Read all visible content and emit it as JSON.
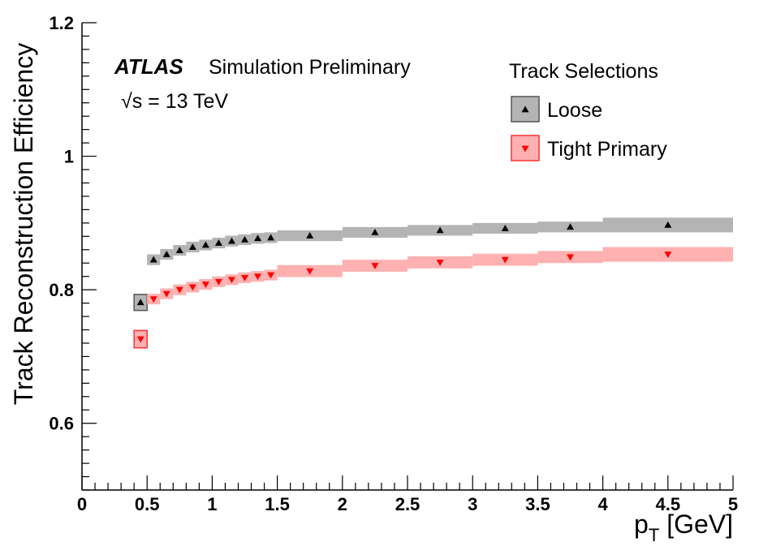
{
  "chart_data": {
    "type": "scatter",
    "xlabel": "p",
    "xlabel_sub": "T",
    "xlabel_unit": " [GeV]",
    "ylabel": "Track Reconstruction Efficiency",
    "xlim": [
      0,
      5
    ],
    "ylim": [
      0.5,
      1.2
    ],
    "x_ticks": [
      "0",
      "0.5",
      "1",
      "1.5",
      "2",
      "2.5",
      "3",
      "3.5",
      "4",
      "4.5",
      "5"
    ],
    "y_ticks": [
      "0.6",
      "0.8",
      "1",
      "1.2"
    ],
    "annotation": {
      "experiment": "ATLAS",
      "status": "Simulation Preliminary",
      "energy_prefix": "√s",
      "energy_value": " = 13 TeV"
    },
    "legend": {
      "title": "Track Selections",
      "position": "top-right"
    },
    "series": [
      {
        "name": "Loose",
        "marker": "triangle-up",
        "marker_color": "#000000",
        "band_color": "#b4b4b4",
        "band_edge_color": "#555555",
        "bins": [
          {
            "x_low": 0.4,
            "x_high": 0.5,
            "y": 0.781,
            "err": 0.012
          },
          {
            "x_low": 0.5,
            "x_high": 0.6,
            "y": 0.845,
            "err": 0.008
          },
          {
            "x_low": 0.6,
            "x_high": 0.7,
            "y": 0.853,
            "err": 0.008
          },
          {
            "x_low": 0.7,
            "x_high": 0.8,
            "y": 0.859,
            "err": 0.008
          },
          {
            "x_low": 0.8,
            "x_high": 0.9,
            "y": 0.864,
            "err": 0.008
          },
          {
            "x_low": 0.9,
            "x_high": 1.0,
            "y": 0.867,
            "err": 0.008
          },
          {
            "x_low": 1.0,
            "x_high": 1.1,
            "y": 0.87,
            "err": 0.008
          },
          {
            "x_low": 1.1,
            "x_high": 1.2,
            "y": 0.873,
            "err": 0.008
          },
          {
            "x_low": 1.2,
            "x_high": 1.3,
            "y": 0.875,
            "err": 0.008
          },
          {
            "x_low": 1.3,
            "x_high": 1.4,
            "y": 0.877,
            "err": 0.008
          },
          {
            "x_low": 1.4,
            "x_high": 1.5,
            "y": 0.878,
            "err": 0.008
          },
          {
            "x_low": 1.5,
            "x_high": 2.0,
            "y": 0.881,
            "err": 0.008
          },
          {
            "x_low": 2.0,
            "x_high": 2.5,
            "y": 0.886,
            "err": 0.008
          },
          {
            "x_low": 2.5,
            "x_high": 3.0,
            "y": 0.889,
            "err": 0.008
          },
          {
            "x_low": 3.0,
            "x_high": 3.5,
            "y": 0.892,
            "err": 0.008
          },
          {
            "x_low": 3.5,
            "x_high": 4.0,
            "y": 0.894,
            "err": 0.008
          },
          {
            "x_low": 4.0,
            "x_high": 5.0,
            "y": 0.897,
            "err": 0.011
          }
        ]
      },
      {
        "name": "Tight Primary",
        "marker": "triangle-down",
        "marker_color": "#ff0000",
        "band_color": "#ffb0b0",
        "band_edge_color": "#ff3030",
        "bins": [
          {
            "x_low": 0.4,
            "x_high": 0.5,
            "y": 0.726,
            "err": 0.013
          },
          {
            "x_low": 0.5,
            "x_high": 0.6,
            "y": 0.786,
            "err": 0.008
          },
          {
            "x_low": 0.6,
            "x_high": 0.7,
            "y": 0.794,
            "err": 0.008
          },
          {
            "x_low": 0.7,
            "x_high": 0.8,
            "y": 0.8,
            "err": 0.008
          },
          {
            "x_low": 0.8,
            "x_high": 0.9,
            "y": 0.804,
            "err": 0.008
          },
          {
            "x_low": 0.9,
            "x_high": 1.0,
            "y": 0.808,
            "err": 0.008
          },
          {
            "x_low": 1.0,
            "x_high": 1.1,
            "y": 0.812,
            "err": 0.008
          },
          {
            "x_low": 1.1,
            "x_high": 1.2,
            "y": 0.815,
            "err": 0.008
          },
          {
            "x_low": 1.2,
            "x_high": 1.3,
            "y": 0.818,
            "err": 0.008
          },
          {
            "x_low": 1.3,
            "x_high": 1.4,
            "y": 0.82,
            "err": 0.008
          },
          {
            "x_low": 1.4,
            "x_high": 1.5,
            "y": 0.822,
            "err": 0.008
          },
          {
            "x_low": 1.5,
            "x_high": 2.0,
            "y": 0.828,
            "err": 0.009
          },
          {
            "x_low": 2.0,
            "x_high": 2.5,
            "y": 0.836,
            "err": 0.009
          },
          {
            "x_low": 2.5,
            "x_high": 3.0,
            "y": 0.841,
            "err": 0.009
          },
          {
            "x_low": 3.0,
            "x_high": 3.5,
            "y": 0.845,
            "err": 0.009
          },
          {
            "x_low": 3.5,
            "x_high": 4.0,
            "y": 0.849,
            "err": 0.009
          },
          {
            "x_low": 4.0,
            "x_high": 5.0,
            "y": 0.853,
            "err": 0.011
          }
        ]
      }
    ]
  }
}
